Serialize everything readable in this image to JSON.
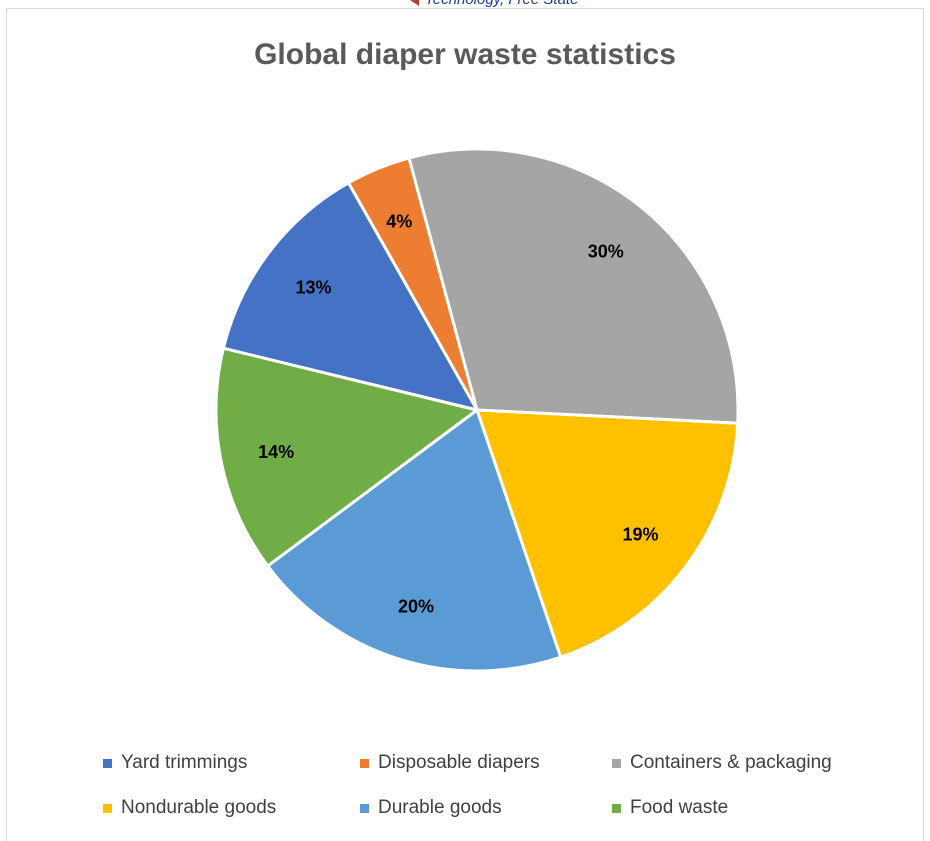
{
  "header": {
    "fragment_text": "Technology, Free State"
  },
  "chart_data": {
    "type": "pie",
    "title": "Global diaper waste statistics",
    "start_angle_deg": -29.5,
    "direction": "clockwise",
    "data_labels": "percent",
    "legend_position": "bottom",
    "slices": [
      {
        "name": "Disposable diapers",
        "value": 4,
        "label": "4%",
        "color": "#ED7D31"
      },
      {
        "name": "Containers & packaging",
        "value": 30,
        "label": "30%",
        "color": "#A5A5A5"
      },
      {
        "name": "Nondurable goods",
        "value": 19,
        "label": "19%",
        "color": "#FFC000"
      },
      {
        "name": "Durable goods",
        "value": 20,
        "label": "20%",
        "color": "#5B9BD5"
      },
      {
        "name": "Food waste",
        "value": 14,
        "label": "14%",
        "color": "#70AD47"
      },
      {
        "name": "Yard trimmings",
        "value": 13,
        "label": "13%",
        "color": "#4472C4"
      }
    ]
  },
  "legend": {
    "items": [
      {
        "label": "Yard trimmings",
        "color": "#4472C4"
      },
      {
        "label": "Disposable diapers",
        "color": "#ED7D31"
      },
      {
        "label": "Containers & packaging",
        "color": "#A5A5A5"
      },
      {
        "label": "Nondurable goods",
        "color": "#FFC000"
      },
      {
        "label": "Durable goods",
        "color": "#5B9BD5"
      },
      {
        "label": "Food waste",
        "color": "#70AD47"
      }
    ]
  }
}
